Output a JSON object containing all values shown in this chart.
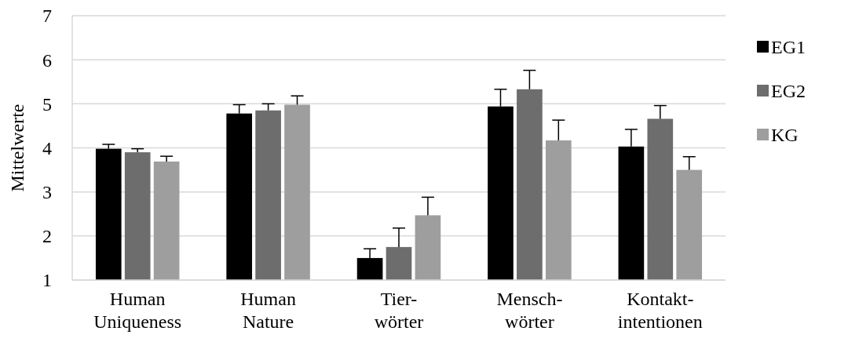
{
  "chart_data": {
    "type": "bar",
    "ylabel": "Mittelwerte",
    "categories": [
      "Human\nUniqueness",
      "Human\nNature",
      "Tier-\nwörter",
      "Mensch-\nwörter",
      "Kontakt-\nintentionen"
    ],
    "series": [
      {
        "name": "EG1",
        "color": "#000000",
        "values": [
          3.98,
          4.78,
          1.5,
          4.94,
          4.03
        ],
        "errors": [
          0.1,
          0.2,
          0.21,
          0.39,
          0.39
        ]
      },
      {
        "name": "EG2",
        "color": "#6d6d6d",
        "values": [
          3.9,
          4.85,
          1.75,
          5.33,
          4.66
        ],
        "errors": [
          0.08,
          0.15,
          0.43,
          0.43,
          0.3
        ]
      },
      {
        "name": "KG",
        "color": "#9e9e9e",
        "values": [
          3.69,
          4.98,
          2.47,
          4.17,
          3.5
        ],
        "errors": [
          0.12,
          0.2,
          0.41,
          0.46,
          0.3
        ]
      }
    ],
    "ylim": [
      1,
      7
    ],
    "yticks": [
      1,
      2,
      3,
      4,
      5,
      6,
      7
    ],
    "grid": "y",
    "legend": "right"
  }
}
